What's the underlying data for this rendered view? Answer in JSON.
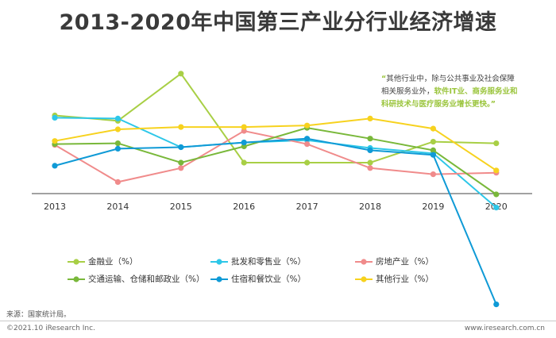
{
  "chart_data": {
    "type": "line",
    "title": "2013-2020年中国第三产业分行业经济增速",
    "categories": [
      "2013",
      "2014",
      "2015",
      "2016",
      "2017",
      "2018",
      "2019",
      "2020"
    ],
    "series": [
      {
        "name": "金融业（%）",
        "color": "#a8cf45",
        "values": [
          10.6,
          9.9,
          16.0,
          4.5,
          4.5,
          4.5,
          7.2,
          7.0
        ]
      },
      {
        "name": "批发和零售业（%）",
        "color": "#2ec7e8",
        "values": [
          10.3,
          10.2,
          6.5,
          7.1,
          7.4,
          6.4,
          5.7,
          -1.3
        ]
      },
      {
        "name": "房地产业（%）",
        "color": "#f08b8b",
        "values": [
          6.8,
          2.0,
          3.8,
          8.6,
          6.9,
          3.8,
          3.0,
          3.2
        ]
      },
      {
        "name": "交通运输、仓储和邮政业（%）",
        "color": "#79b83a",
        "values": [
          6.9,
          7.0,
          4.5,
          6.6,
          9.0,
          7.6,
          6.1,
          0.4
        ]
      },
      {
        "name": "住宿和餐饮业（%）",
        "color": "#0f9ad6",
        "values": [
          4.1,
          6.3,
          6.5,
          7.1,
          7.6,
          6.1,
          5.5,
          -13.8
        ]
      },
      {
        "name": "其他行业（%）",
        "color": "#f7d21e",
        "values": [
          7.3,
          8.8,
          9.1,
          9.1,
          9.3,
          10.2,
          8.9,
          3.5
        ]
      }
    ]
  },
  "annotation": {
    "line1": "其他行业中，除与公共事业及社会保障",
    "line2_plain": "相关服务业外，",
    "line2_highlight": "软件IT业、商务服务业和",
    "line3_highlight": "科研技术与医疗服务业增长更快。"
  },
  "source": "来源：国家统计局。",
  "footer_left": "©2021.10 iResearch Inc.",
  "footer_right": "www.iresearch.com.cn"
}
